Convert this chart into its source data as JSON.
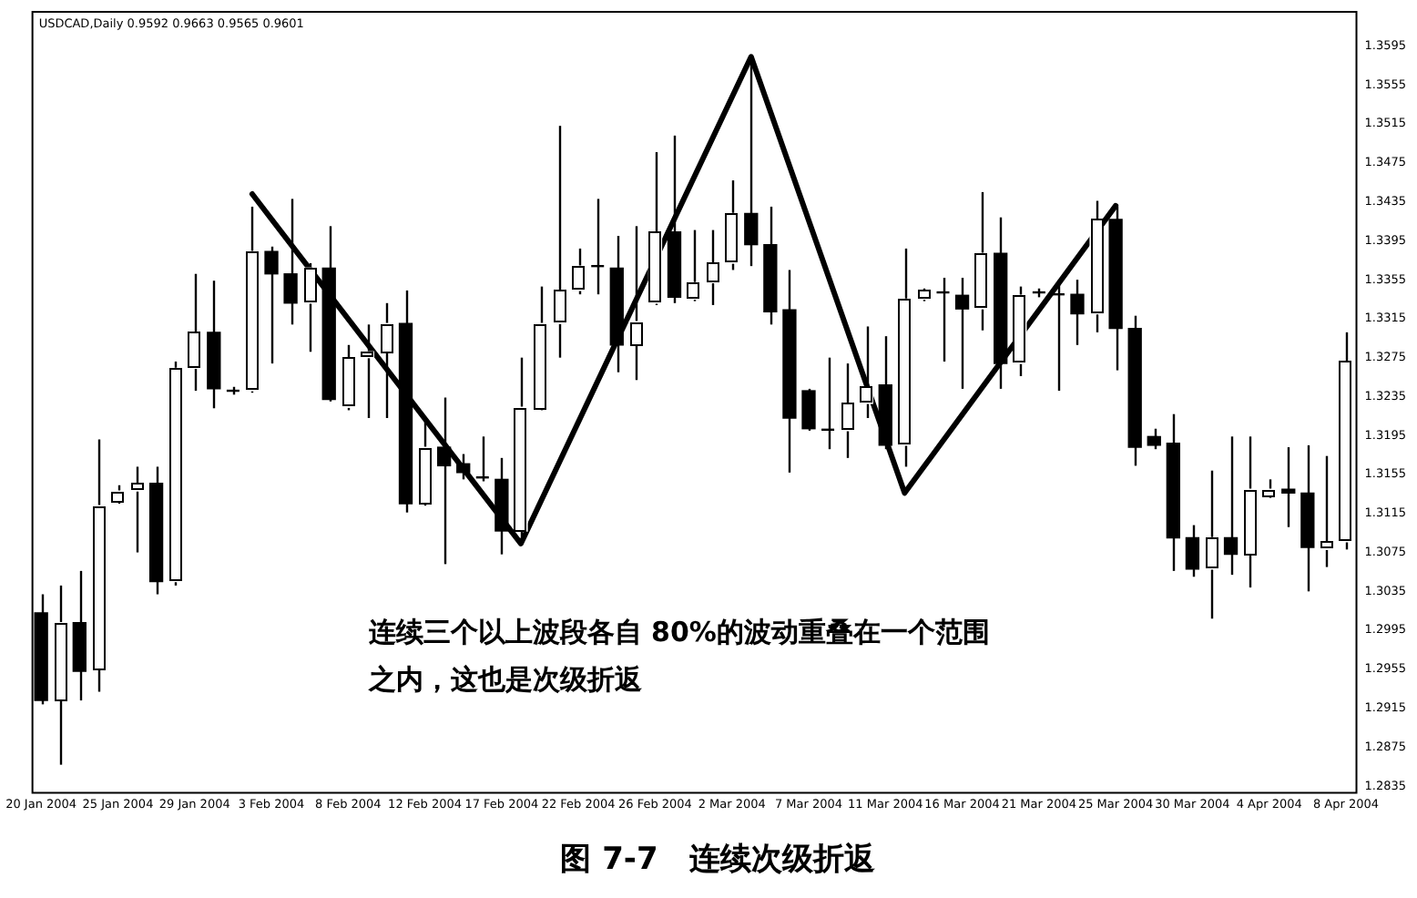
{
  "chart_data": {
    "type": "candlestick",
    "title": "图 7-7　连续次级折返",
    "subtitle": "USDCAD,Daily 0.9592 0.9663 0.9565 0.9601",
    "annotations": [
      "连续三个以上波段各自 80%的波动重叠在一个范围之内，这也是次级折返"
    ],
    "categories": [
      "20 Jan 2004",
      null,
      null,
      null,
      "25 Jan 2004",
      null,
      null,
      null,
      "29 Jan 2004",
      null,
      null,
      null,
      "3 Feb 2004",
      null,
      null,
      null,
      "8 Feb 2004",
      null,
      null,
      null,
      "12 Feb 2004",
      null,
      null,
      null,
      "17 Feb 2004",
      null,
      null,
      null,
      "22 Feb 2004",
      null,
      null,
      null,
      "26 Feb 2004",
      null,
      null,
      null,
      "2 Mar 2004",
      null,
      null,
      null,
      "7 Mar 2004",
      null,
      null,
      null,
      "11 Mar 2004",
      null,
      null,
      null,
      "16 Mar 2004",
      null,
      null,
      null,
      "21 Mar 2004",
      null,
      null,
      null,
      "25 Mar 2004",
      null,
      null,
      null,
      "30 Mar 2004",
      null,
      null,
      null,
      "4 Apr 2004",
      null,
      null,
      null,
      "8 Apr 2004"
    ],
    "ohlc": [
      [
        1.3013,
        1.3032,
        1.2919,
        1.2923
      ],
      [
        1.2923,
        1.3041,
        1.2857,
        1.3003
      ],
      [
        1.3003,
        1.3056,
        1.2923,
        1.2953
      ],
      [
        1.2955,
        1.3191,
        1.2932,
        1.3123
      ],
      [
        1.3127,
        1.3144,
        1.3125,
        1.3138
      ],
      [
        1.3138,
        1.3163,
        1.3075,
        1.3146
      ],
      [
        1.3146,
        1.3163,
        1.3032,
        1.3045
      ],
      [
        1.3045,
        1.3271,
        1.3041,
        1.3264
      ],
      [
        1.3264,
        1.3361,
        1.3241,
        1.3301
      ],
      [
        1.3301,
        1.3354,
        1.3223,
        1.3243
      ],
      [
        1.3241,
        1.3245,
        1.3237,
        1.3241
      ],
      [
        1.3241,
        1.343,
        1.3239,
        1.3384
      ],
      [
        1.3384,
        1.3389,
        1.3269,
        1.3361
      ],
      [
        1.3361,
        1.3438,
        1.3309,
        1.3331
      ],
      [
        1.3331,
        1.3372,
        1.3281,
        1.3367
      ],
      [
        1.3367,
        1.341,
        1.323,
        1.3232
      ],
      [
        1.3224,
        1.3288,
        1.3221,
        1.3275
      ],
      [
        1.3275,
        1.3309,
        1.3213,
        1.3281
      ],
      [
        1.3281,
        1.3331,
        1.3213,
        1.331
      ],
      [
        1.331,
        1.3344,
        1.3116,
        1.3125
      ],
      [
        1.3125,
        1.3213,
        1.3123,
        1.3183
      ],
      [
        1.3183,
        1.3234,
        1.3063,
        1.3164
      ],
      [
        1.3166,
        1.3176,
        1.315,
        1.3157
      ],
      [
        1.3152,
        1.3194,
        1.3148,
        1.3152
      ],
      [
        1.315,
        1.3172,
        1.3073,
        1.3097
      ],
      [
        1.3097,
        1.3275,
        1.3088,
        1.3224
      ],
      [
        1.3223,
        1.3348,
        1.3221,
        1.331
      ],
      [
        1.331,
        1.3513,
        1.3275,
        1.3344
      ],
      [
        1.3344,
        1.3387,
        1.334,
        1.3369
      ],
      [
        1.3369,
        1.3438,
        1.334,
        1.3369
      ],
      [
        1.3367,
        1.34,
        1.326,
        1.3288
      ],
      [
        1.3288,
        1.341,
        1.3252,
        1.3312
      ],
      [
        1.3331,
        1.3486,
        1.3329,
        1.3404
      ],
      [
        1.3404,
        1.3503,
        1.3331,
        1.3337
      ],
      [
        1.3335,
        1.3406,
        1.3333,
        1.3352
      ],
      [
        1.3352,
        1.3406,
        1.3329,
        1.3372
      ],
      [
        1.3372,
        1.3457,
        1.3365,
        1.3423
      ],
      [
        1.3423,
        1.3584,
        1.3369,
        1.3391
      ],
      [
        1.3391,
        1.343,
        1.3309,
        1.3322
      ],
      [
        1.3324,
        1.3365,
        1.3157,
        1.3213
      ],
      [
        1.3241,
        1.3243,
        1.32,
        1.3202
      ],
      [
        1.3201,
        1.3275,
        1.3181,
        1.3201
      ],
      [
        1.32,
        1.3269,
        1.3172,
        1.3228
      ],
      [
        1.3228,
        1.3307,
        1.3213,
        1.3245
      ],
      [
        1.3247,
        1.3297,
        1.3181,
        1.3185
      ],
      [
        1.3185,
        1.3387,
        1.3163,
        1.3335
      ],
      [
        1.3335,
        1.3346,
        1.3333,
        1.3344
      ],
      [
        1.3342,
        1.3357,
        1.3271,
        1.3342
      ],
      [
        1.3339,
        1.3357,
        1.3243,
        1.3325
      ],
      [
        1.3325,
        1.3445,
        1.3303,
        1.3382
      ],
      [
        1.3382,
        1.3419,
        1.3243,
        1.3269
      ],
      [
        1.3269,
        1.3348,
        1.3256,
        1.3339
      ],
      [
        1.3342,
        1.3346,
        1.3337,
        1.3342
      ],
      [
        1.334,
        1.3355,
        1.3241,
        1.334
      ],
      [
        1.334,
        1.3355,
        1.3288,
        1.332
      ],
      [
        1.332,
        1.3436,
        1.3301,
        1.3417
      ],
      [
        1.3417,
        1.343,
        1.3262,
        1.3305
      ],
      [
        1.3305,
        1.3318,
        1.3164,
        1.3183
      ],
      [
        1.3194,
        1.3202,
        1.3181,
        1.3185
      ],
      [
        1.3187,
        1.3217,
        1.3056,
        1.309
      ],
      [
        1.309,
        1.3103,
        1.305,
        1.3058
      ],
      [
        1.3058,
        1.3159,
        1.3007,
        1.309
      ],
      [
        1.309,
        1.3194,
        1.3052,
        1.3073
      ],
      [
        1.3073,
        1.3194,
        1.3039,
        1.314
      ],
      [
        1.3133,
        1.315,
        1.3131,
        1.314
      ],
      [
        1.314,
        1.3183,
        1.3101,
        1.3136
      ],
      [
        1.3136,
        1.3185,
        1.3035,
        1.308
      ],
      [
        1.3078,
        1.3174,
        1.306,
        1.3086
      ],
      [
        1.3086,
        1.3301,
        1.3078,
        1.3271
      ]
    ],
    "colors": [
      "#000000",
      "#ffffff",
      "#000000",
      "#ffffff",
      "#ffffff",
      "#ffffff",
      "#000000",
      "#ffffff",
      "#ffffff",
      "#000000",
      "#000000",
      "#ffffff",
      "#000000",
      "#000000",
      "#ffffff",
      "#000000",
      "#ffffff",
      "#ffffff",
      "#ffffff",
      "#000000",
      "#ffffff",
      "#000000",
      "#000000",
      "#000000",
      "#000000",
      "#ffffff",
      "#ffffff",
      "#ffffff",
      "#ffffff",
      "#000000",
      "#000000",
      "#ffffff",
      "#ffffff",
      "#000000",
      "#ffffff",
      "#ffffff",
      "#ffffff",
      "#000000",
      "#000000",
      "#000000",
      "#000000",
      "#000000",
      "#ffffff",
      "#ffffff",
      "#000000",
      "#ffffff",
      "#ffffff",
      "#000000",
      "#000000",
      "#ffffff",
      "#000000",
      "#ffffff",
      "#000000",
      "#000000",
      "#000000",
      "#ffffff",
      "#000000",
      "#000000",
      "#000000",
      "#000000",
      "#000000",
      "#ffffff",
      "#000000",
      "#ffffff",
      "#ffffff",
      "#000000",
      "#000000",
      "#ffffff",
      "#ffffff"
    ],
    "series": [
      {
        "type": "line",
        "color": "#000000",
        "values": [
          null,
          null,
          null,
          null,
          null,
          null,
          null,
          null,
          null,
          null,
          null,
          1.3443,
          null,
          null,
          null,
          null,
          null,
          null,
          null,
          null,
          null,
          null,
          null,
          null,
          null,
          1.3084,
          null,
          null,
          null,
          null,
          null,
          null,
          null,
          null,
          null,
          null,
          null,
          1.3584,
          null,
          null,
          null,
          null,
          null,
          null,
          null,
          1.3136,
          null,
          null,
          null,
          null,
          null,
          null,
          null,
          null,
          null,
          null,
          1.3431,
          null,
          null,
          null,
          null,
          null,
          null,
          null,
          null,
          null,
          null,
          null,
          null
        ]
      }
    ],
    "ylim": [
      1.2829,
      1.3631
    ],
    "yticks": [
      1.2835,
      1.2875,
      1.2915,
      1.2955,
      1.2995,
      1.3035,
      1.3075,
      1.3115,
      1.3155,
      1.3195,
      1.3235,
      1.3275,
      1.3315,
      1.3355,
      1.3395,
      1.3435,
      1.3475,
      1.3515,
      1.3555,
      1.3595
    ],
    "grid": false,
    "legend": false,
    "marker": "none",
    "line_style": "solid"
  }
}
